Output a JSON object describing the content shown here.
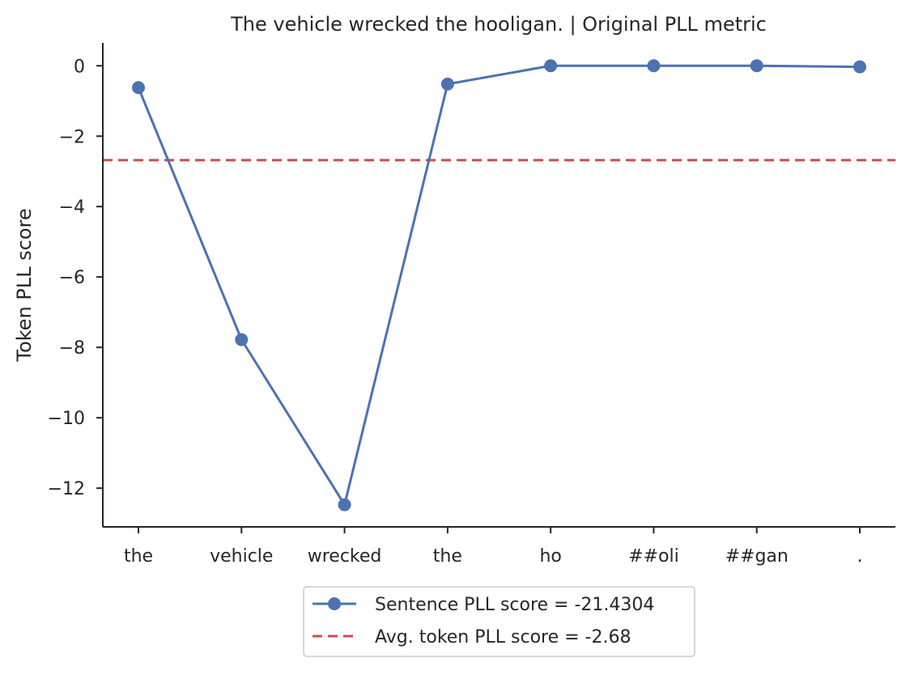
{
  "chart_data": {
    "type": "line",
    "title": "The vehicle wrecked the hooligan. | Original PLL metric",
    "xlabel": "",
    "ylabel": "Token PLL score",
    "categories": [
      "the",
      "vehicle",
      "wrecked",
      "the",
      "ho",
      "##oli",
      "##gan",
      "."
    ],
    "series": [
      {
        "name": "Sentence PLL score = -21.4304",
        "values": [
          -0.62,
          -7.78,
          -12.47,
          -0.52,
          0.0,
          0.0,
          0.0,
          -0.03
        ],
        "color": "#4c72b0",
        "style": "solid-with-markers"
      }
    ],
    "reference_lines": [
      {
        "name": "Avg. token PLL score = -2.68",
        "y": -2.68,
        "color": "#c44e52",
        "style": "dashed"
      }
    ],
    "ylim": [
      -13.1,
      0.65
    ],
    "yticks": [
      0,
      -2,
      -4,
      -6,
      -8,
      -10,
      -12
    ],
    "ytick_labels": [
      "0",
      "−2",
      "−4",
      "−6",
      "−8",
      "−10",
      "−12"
    ],
    "grid": false,
    "legend_position": "bottom-center-outside"
  }
}
